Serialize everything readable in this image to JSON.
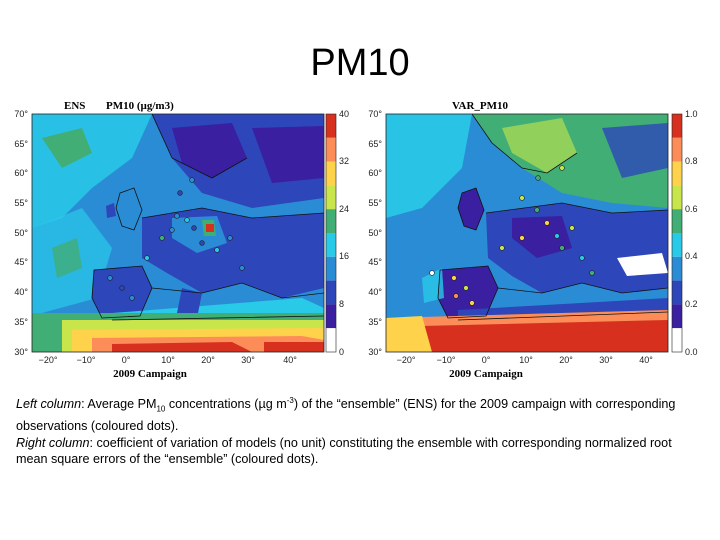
{
  "slide": {
    "title": "PM10"
  },
  "panels": [
    {
      "id": "ens",
      "title_left": "ENS",
      "title_right": "PM10 (µg/m3)",
      "campaign": "2009 Campaign",
      "lat_ticks": [
        "70°",
        "65°",
        "60°",
        "55°",
        "50°",
        "45°",
        "40°",
        "35°",
        "30°"
      ],
      "lon_ticks": [
        "−20°",
        "−10°",
        "0°",
        "10°",
        "20°",
        "30°",
        "40°"
      ],
      "colorbar_ticks": [
        "40",
        "32",
        "24",
        "16",
        "8",
        "0"
      ],
      "colorbar_colors": [
        "#d7301f",
        "#fc8d59",
        "#fed24b",
        "#c8e64b",
        "#41ae76",
        "#29c9e8",
        "#2b8cd6",
        "#2d46b9",
        "#3a1fa0",
        "#ffffff"
      ]
    },
    {
      "id": "var",
      "title_left": "",
      "title_right": "VAR_PM10",
      "campaign": "2009 Campaign",
      "lat_ticks": [
        "70°",
        "65°",
        "60°",
        "55°",
        "50°",
        "45°",
        "40°",
        "35°",
        "30°"
      ],
      "lon_ticks": [
        "−20°",
        "−10°",
        "0°",
        "10°",
        "20°",
        "30°",
        "40°"
      ],
      "colorbar_ticks": [
        "1.0",
        "0.8",
        "0.6",
        "0.4",
        "0.2",
        "0.0"
      ],
      "colorbar_colors": [
        "#d7301f",
        "#fc8d59",
        "#fed24b",
        "#c8e64b",
        "#41ae76",
        "#29c9e8",
        "#2b8cd6",
        "#2d46b9",
        "#3a1fa0",
        "#ffffff"
      ]
    }
  ],
  "caption": {
    "left_label": "Left column",
    "left_text_1": ": Average PM",
    "left_sub": "10",
    "left_text_2": " concentrations (µg m",
    "left_sup": "-3",
    "left_text_3": ") of the “ensemble” (ENS) for the 2009 campaign with corresponding observations (coloured dots).",
    "right_label": "Right column",
    "right_text": ": coefficient of variation of models (no unit) constituting the ensemble with corresponding normalized root mean square errors of the “ensemble” (coloured dots)."
  }
}
